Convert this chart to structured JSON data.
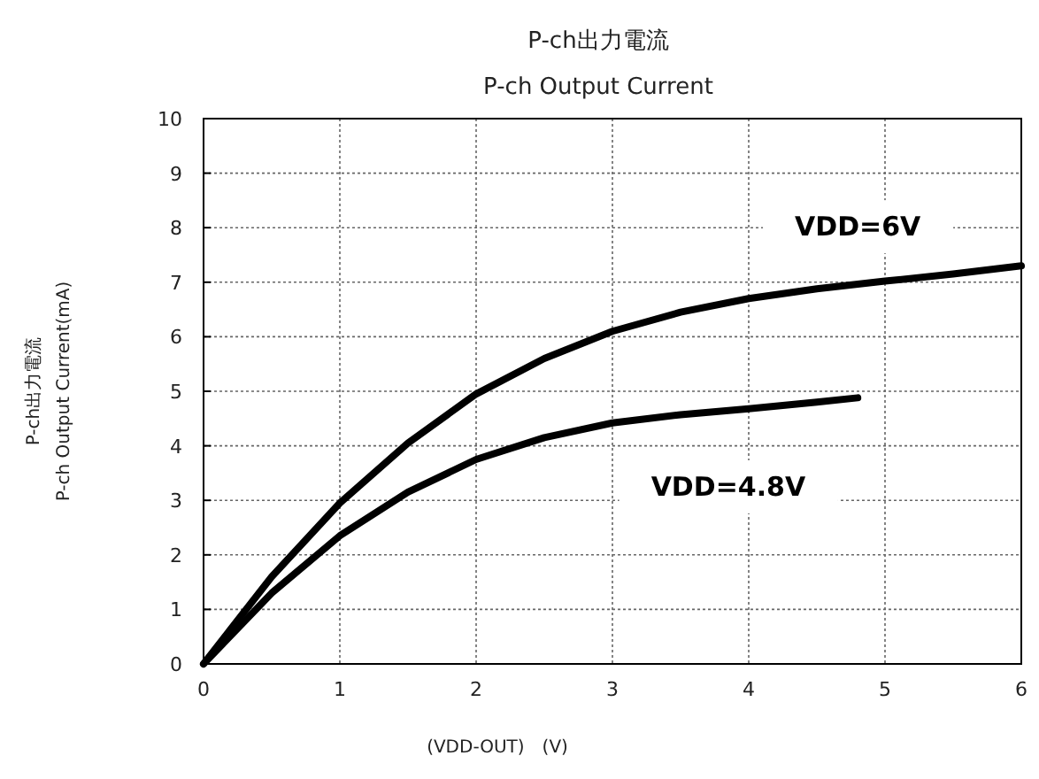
{
  "chart_data": {
    "type": "line",
    "title": "P-ch出力電流",
    "subtitle": "P-ch Output Current",
    "xlabel": "(VDD-OUT)　(V)",
    "ylabel": "P-ch出力電流\nP-ch Output Current(mA)",
    "xlim": [
      0,
      6
    ],
    "ylim": [
      0,
      10
    ],
    "xticks": [
      0,
      1,
      2,
      3,
      4,
      5,
      6
    ],
    "yticks": [
      0,
      1,
      2,
      3,
      4,
      5,
      6,
      7,
      8,
      9,
      10
    ],
    "grid": true,
    "line_style": "solid",
    "series": [
      {
        "name": "VDD=6V",
        "color": "#000000",
        "x": [
          0,
          0.5,
          1,
          1.5,
          2,
          2.5,
          3,
          3.5,
          4,
          4.5,
          5,
          5.5,
          6
        ],
        "values": [
          0,
          1.6,
          2.95,
          4.05,
          4.95,
          5.6,
          6.1,
          6.45,
          6.7,
          6.88,
          7.02,
          7.15,
          7.3
        ]
      },
      {
        "name": "VDD=4.8V",
        "color": "#000000",
        "x": [
          0,
          0.5,
          1,
          1.5,
          2,
          2.5,
          3,
          3.5,
          4,
          4.5,
          4.8
        ],
        "values": [
          0,
          1.3,
          2.35,
          3.15,
          3.75,
          4.15,
          4.42,
          4.57,
          4.68,
          4.8,
          4.88
        ]
      }
    ]
  }
}
